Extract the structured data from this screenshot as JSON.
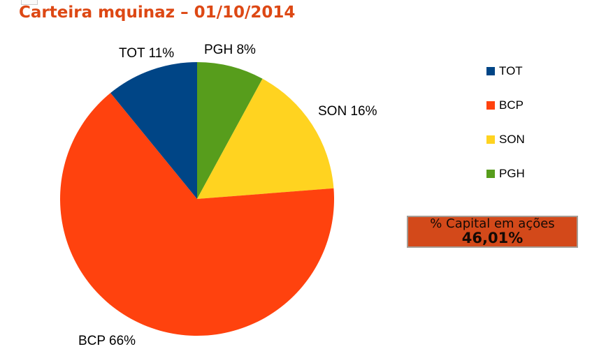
{
  "header": {
    "title": "Carteira mquinaz – 01/10/2014",
    "title_color": "#dd4814"
  },
  "chart_data": {
    "type": "pie",
    "title": "Carteira mquinaz – 01/10/2014",
    "start_angle_deg": 0,
    "direction": "clockwise",
    "slices": [
      {
        "name": "PGH",
        "value": 8,
        "color": "#579d1c",
        "label": "PGH 8%"
      },
      {
        "name": "SON",
        "value": 16,
        "color": "#ffd320",
        "label": "SON 16%"
      },
      {
        "name": "BCP",
        "value": 66,
        "color": "#ff420e",
        "label": "BCP 66%"
      },
      {
        "name": "TOT",
        "value": 11,
        "color": "#004586",
        "label": "TOT 11%"
      }
    ],
    "legend_position": "right"
  },
  "legend": {
    "items": [
      {
        "label": "TOT",
        "color": "#004586"
      },
      {
        "label": "BCP",
        "color": "#ff420e"
      },
      {
        "label": "SON",
        "color": "#ffd320"
      },
      {
        "label": "PGH",
        "color": "#579d1c"
      }
    ]
  },
  "info_box": {
    "line1": "% Capital em ações",
    "value": "46,01%",
    "background": "#d3491a"
  }
}
